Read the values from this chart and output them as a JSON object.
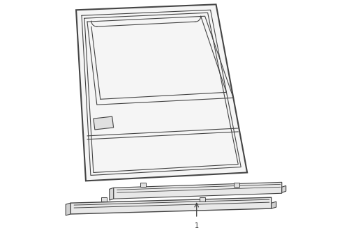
{
  "bg_color": "#ffffff",
  "line_color": "#444444",
  "figsize": [
    4.9,
    3.6
  ],
  "dpi": 100,
  "lw_main": 1.5,
  "lw_thin": 0.8,
  "lw_med": 1.0
}
